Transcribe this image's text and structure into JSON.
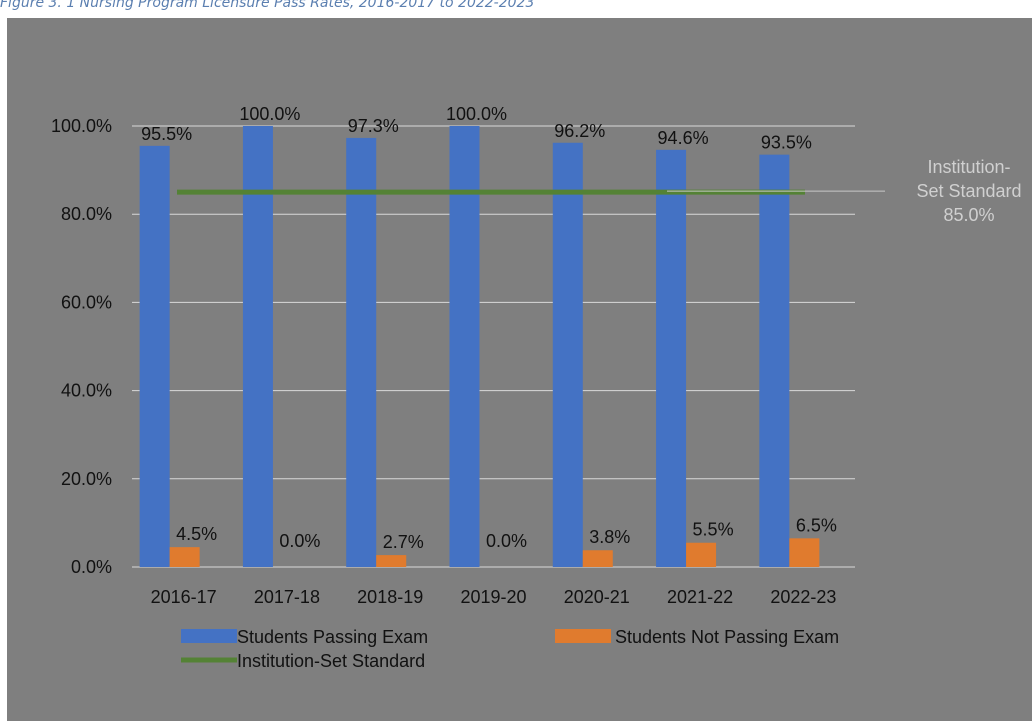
{
  "caption": "Figure 3. 1 Nursing Program Licensure Pass Rates, 2016-2017 to 2022-2023",
  "chart_data": {
    "type": "bar",
    "categories": [
      "2016-17",
      "2017-18",
      "2018-19",
      "2019-20",
      "2020-21",
      "2021-22",
      "2022-23"
    ],
    "series": [
      {
        "name": "Students Passing Exam",
        "values": [
          95.5,
          100.0,
          97.3,
          100.0,
          96.2,
          94.6,
          93.5
        ],
        "labels": [
          "95.5%",
          "100.0%",
          "97.3%",
          "100.0%",
          "96.2%",
          "94.6%",
          "93.5%"
        ],
        "color": "#4472c4"
      },
      {
        "name": "Students Not Passing Exam",
        "values": [
          4.5,
          0.0,
          2.7,
          0.0,
          3.8,
          5.5,
          6.5
        ],
        "labels": [
          "4.5%",
          "0.0%",
          "2.7%",
          "0.0%",
          "3.8%",
          "5.5%",
          "6.5%"
        ],
        "color": "#e07b2e"
      }
    ],
    "reference_line": {
      "name": "Institution-Set Standard",
      "value": 85.0,
      "label_lines": [
        "Institution-",
        "Set Standard",
        "85.0%"
      ],
      "color": "#548235"
    },
    "y_ticks": [
      "0.0%",
      "20.0%",
      "40.0%",
      "60.0%",
      "80.0%",
      "100.0%"
    ],
    "y_tick_values": [
      0,
      20,
      40,
      60,
      80,
      100
    ],
    "ylim": [
      0,
      100
    ],
    "grid": true,
    "legend_position": "bottom"
  }
}
